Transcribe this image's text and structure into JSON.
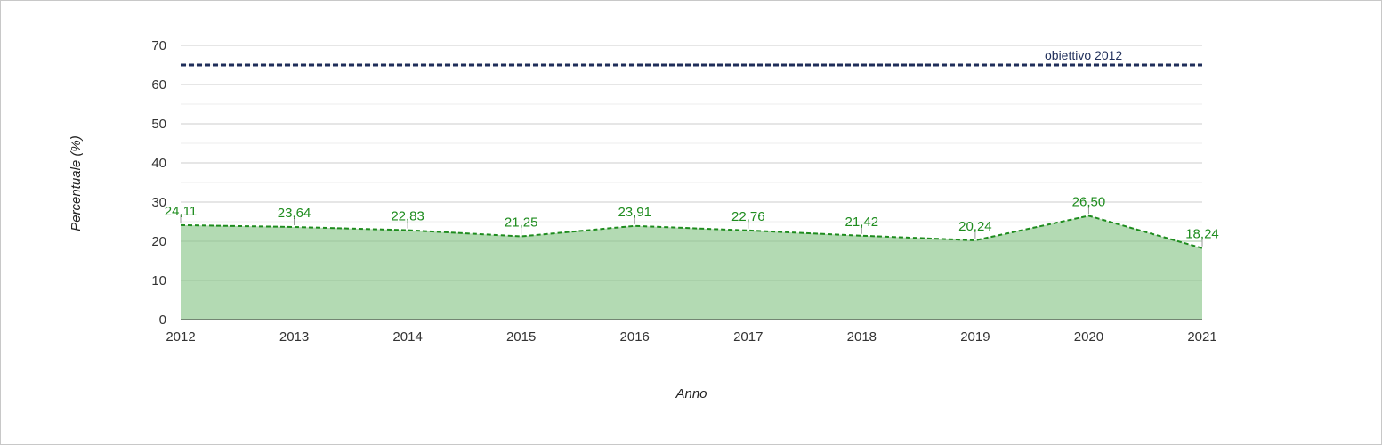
{
  "chart_data": {
    "type": "area",
    "xlabel": "Anno",
    "ylabel": "Percentuale (%)",
    "ylim": [
      0,
      70
    ],
    "yticks": [
      "0",
      "10",
      "20",
      "30",
      "40",
      "50",
      "60",
      "70"
    ],
    "categories": [
      "2012",
      "2013",
      "2014",
      "2015",
      "2016",
      "2017",
      "2018",
      "2019",
      "2020",
      "2021"
    ],
    "series": [
      {
        "values": [
          24.11,
          23.64,
          22.83,
          21.25,
          23.91,
          22.76,
          21.42,
          20.24,
          26.5,
          18.24
        ],
        "labels": [
          "24,11",
          "23,64",
          "22,83",
          "21,25",
          "23,91",
          "22,76",
          "21,42",
          "20,24",
          "26,50",
          "18,24"
        ],
        "color": "#1e8c1e",
        "fill": "#b3dab3"
      }
    ],
    "reference_line": {
      "name": "obiettivo 2012",
      "value": 65,
      "color": "#1f2e5a"
    },
    "grid": true,
    "legend": "none"
  }
}
